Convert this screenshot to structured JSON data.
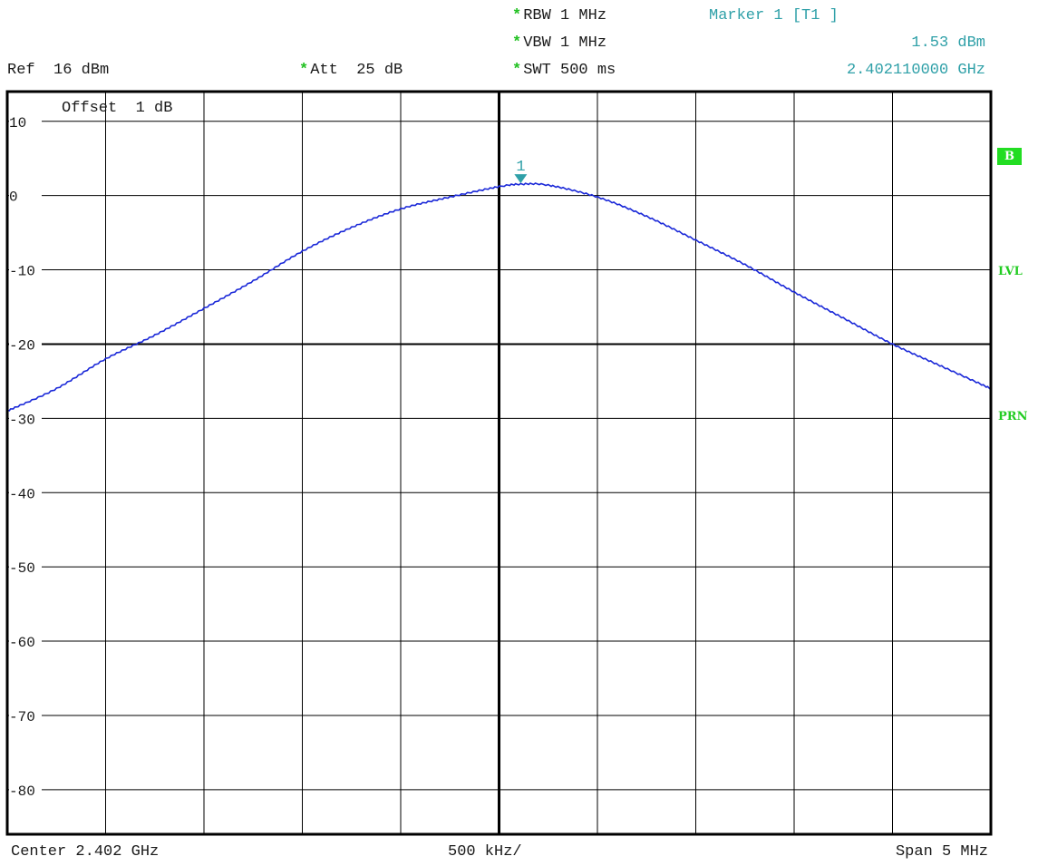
{
  "header": {
    "rbw": "RBW 1 MHz",
    "vbw": "VBW 1 MHz",
    "swt": "SWT 500 ms",
    "ref": "Ref  16 dBm",
    "att": "Att  25 dB",
    "star": "*",
    "marker_title": "Marker 1 [T1 ]",
    "marker_level": "1.53 dBm",
    "marker_freq": "2.402110000 GHz",
    "offset": "Offset  1 dB"
  },
  "footer": {
    "center": "Center 2.402 GHz",
    "per_div": "500 kHz/",
    "span": "Span 5 MHz"
  },
  "side_labels": {
    "b": "B",
    "lvl": "LVL",
    "prn": "PRN"
  },
  "colors": {
    "trace": "#1a28d8",
    "marker": "#2fa0a8",
    "side_label": "#22cc22"
  },
  "chart_data": {
    "type": "line",
    "x_unit": "MHz",
    "x_center": 2402.0,
    "x_span": 5.0,
    "ylim": [
      -86,
      14
    ],
    "y_ticks": [
      10,
      0,
      -10,
      -20,
      -30,
      -40,
      -50,
      -60,
      -70,
      -80
    ],
    "y_tick_labels": [
      "10",
      "0",
      "-10",
      "-20",
      "-30",
      "-40",
      "-50",
      "-60",
      "-70",
      "-80"
    ],
    "grid": true,
    "series": [
      {
        "x": [
          2399.5,
          2399.75,
          2400.0,
          2400.25,
          2400.5,
          2400.75,
          2401.0,
          2401.25,
          2401.5,
          2401.75,
          2402.0,
          2402.11,
          2402.25,
          2402.5,
          2402.75,
          2403.0,
          2403.25,
          2403.5,
          2403.75,
          2404.0,
          2404.25,
          2404.5
        ],
        "y": [
          -29.0,
          -26.0,
          -22.0,
          -18.8,
          -15.2,
          -11.5,
          -7.5,
          -4.3,
          -1.8,
          -0.2,
          1.2,
          1.53,
          1.4,
          -0.2,
          -2.8,
          -6.0,
          -9.3,
          -13.0,
          -16.5,
          -20.0,
          -23.0,
          -26.0
        ]
      }
    ],
    "marker": {
      "label": "1",
      "x": 2402.11,
      "y": 1.53
    }
  }
}
